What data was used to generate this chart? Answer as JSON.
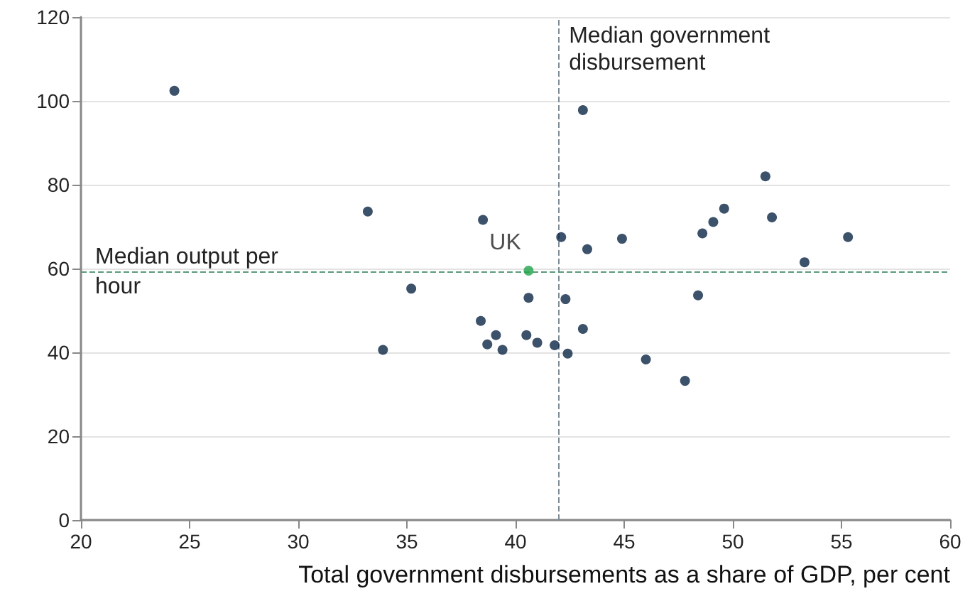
{
  "chart_data": {
    "type": "scatter",
    "xlabel": "Total government disbursements as a share of GDP, per cent",
    "xlim": [
      20,
      60
    ],
    "xticks": [
      20,
      25,
      30,
      35,
      40,
      45,
      50,
      55,
      60
    ],
    "ylim": [
      0,
      120
    ],
    "yticks": [
      0,
      20,
      40,
      60,
      80,
      100,
      120
    ],
    "grid": "y",
    "marker": "circle",
    "legend": false,
    "series": [
      {
        "color": "#0b2545",
        "x": [
          24.3,
          33.2,
          38.5,
          35.2,
          38.4,
          43.1,
          51.5,
          49.6,
          49.1,
          51.8,
          48.6,
          42.1,
          44.9,
          55.3,
          43.3,
          53.3,
          40.6,
          42.3,
          48.4,
          33.9,
          38.7,
          39.1,
          39.4,
          40.5,
          41.0,
          41.8,
          42.4,
          43.1,
          46.0,
          47.8
        ],
        "values": [
          102.4,
          73.6,
          71.6,
          55.2,
          47.5,
          97.8,
          82.0,
          74.3,
          71.1,
          72.2,
          68.4,
          67.5,
          67.1,
          67.5,
          64.6,
          61.5,
          53.0,
          52.7,
          53.6,
          40.6,
          41.9,
          44.1,
          40.6,
          44.1,
          42.3,
          41.7,
          39.7,
          45.6,
          38.3,
          33.2
        ]
      },
      {
        "name": "UK",
        "color": "#1fa24a",
        "x": [
          40.6
        ],
        "values": [
          59.5
        ]
      }
    ],
    "ref_lines": [
      {
        "axis": "x",
        "value": 42.0,
        "label": "Median government disbursement",
        "color": "#7f8c96",
        "line_style": "dashed"
      },
      {
        "axis": "y",
        "value": 59.1,
        "label": "Median output per hour",
        "color": "#5a9a7a",
        "line_style": "dashed"
      }
    ]
  }
}
